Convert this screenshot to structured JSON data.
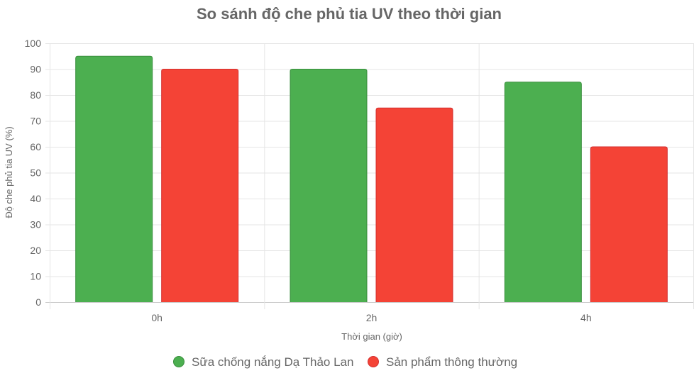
{
  "chart_data": {
    "type": "bar",
    "title": "So sánh độ che phủ tia UV theo thời gian",
    "xlabel": "Thời gian (giờ)",
    "ylabel": "Độ che phủ tia UV (%)",
    "categories": [
      "0h",
      "2h",
      "4h"
    ],
    "ylim": [
      0,
      100
    ],
    "yticks": [
      0,
      10,
      20,
      30,
      40,
      50,
      60,
      70,
      80,
      90,
      100
    ],
    "grid": true,
    "legend_position": "bottom",
    "series": [
      {
        "name": "Sữa chống nắng Dạ Thảo Lan",
        "values": [
          95,
          90,
          85
        ],
        "color": "#4caf50",
        "border": "#388e3c"
      },
      {
        "name": "Sản phẩm thông thường",
        "values": [
          90,
          75,
          60
        ],
        "color": "#f44336",
        "border": "#d32f2f"
      }
    ]
  }
}
